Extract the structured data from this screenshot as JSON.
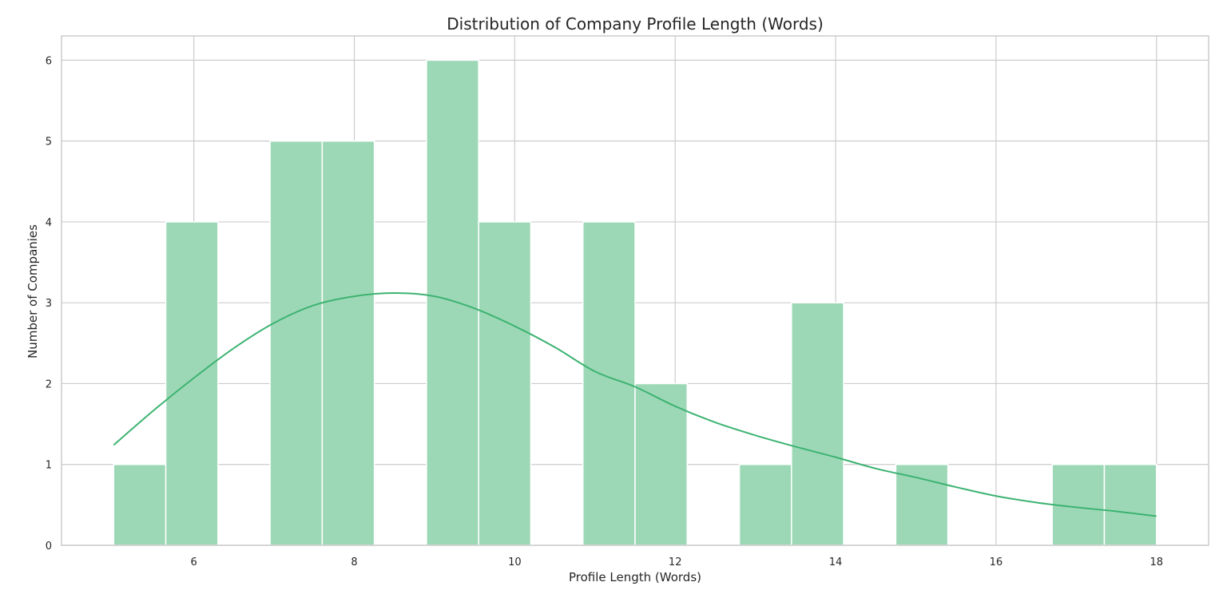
{
  "chart_data": {
    "type": "bar",
    "subtype": "histogram-with-kde",
    "title": "Distribution of Company Profile Length (Words)",
    "xlabel": "Profile Length (Words)",
    "ylabel": "Number of Companies",
    "xlim": [
      4.35,
      18.65
    ],
    "ylim": [
      0,
      6.3
    ],
    "xticks": [
      6,
      8,
      10,
      12,
      14,
      16,
      18
    ],
    "yticks": [
      0,
      1,
      2,
      3,
      4,
      5,
      6
    ],
    "grid": true,
    "bin_width": 0.65,
    "bins": [
      {
        "start": 5.0,
        "end": 5.65,
        "count": 1
      },
      {
        "start": 5.65,
        "end": 6.3,
        "count": 4
      },
      {
        "start": 6.3,
        "end": 6.95,
        "count": 0
      },
      {
        "start": 6.95,
        "end": 7.6,
        "count": 5
      },
      {
        "start": 7.6,
        "end": 8.25,
        "count": 5
      },
      {
        "start": 8.25,
        "end": 8.9,
        "count": 0
      },
      {
        "start": 8.9,
        "end": 9.55,
        "count": 6
      },
      {
        "start": 9.55,
        "end": 10.2,
        "count": 4
      },
      {
        "start": 10.2,
        "end": 10.85,
        "count": 0
      },
      {
        "start": 10.85,
        "end": 11.5,
        "count": 4
      },
      {
        "start": 11.5,
        "end": 12.15,
        "count": 2
      },
      {
        "start": 12.15,
        "end": 12.8,
        "count": 0
      },
      {
        "start": 12.8,
        "end": 13.45,
        "count": 1
      },
      {
        "start": 13.45,
        "end": 14.1,
        "count": 3
      },
      {
        "start": 14.1,
        "end": 14.75,
        "count": 0
      },
      {
        "start": 14.75,
        "end": 15.4,
        "count": 1
      },
      {
        "start": 15.4,
        "end": 16.05,
        "count": 0
      },
      {
        "start": 16.05,
        "end": 16.7,
        "count": 0
      },
      {
        "start": 16.7,
        "end": 17.35,
        "count": 1
      },
      {
        "start": 17.35,
        "end": 18.0,
        "count": 1
      }
    ],
    "kde": {
      "x": [
        5.0,
        5.5,
        6.0,
        6.5,
        7.0,
        7.5,
        8.0,
        8.5,
        9.0,
        9.5,
        10.0,
        10.5,
        11.0,
        11.5,
        12.0,
        12.5,
        13.0,
        13.5,
        14.0,
        14.5,
        15.0,
        15.5,
        16.0,
        16.5,
        17.0,
        17.5,
        18.0
      ],
      "y": [
        1.24,
        1.67,
        2.07,
        2.44,
        2.75,
        2.97,
        3.08,
        3.12,
        3.08,
        2.93,
        2.71,
        2.45,
        2.15,
        1.96,
        1.72,
        1.52,
        1.36,
        1.22,
        1.09,
        0.95,
        0.84,
        0.72,
        0.61,
        0.53,
        0.47,
        0.42,
        0.36
      ]
    },
    "colors": {
      "bar_fill": "#9dd8b6",
      "bar_edge": "#ffffff",
      "kde_line": "#3cb371",
      "grid": "#cccccc"
    }
  }
}
